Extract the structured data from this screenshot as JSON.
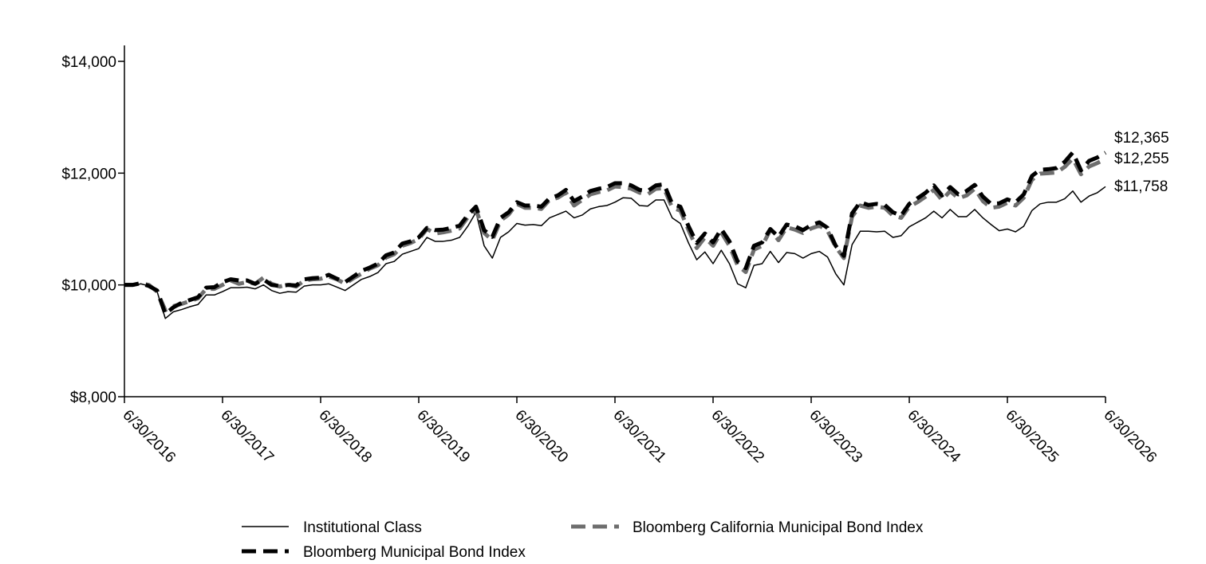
{
  "chart_data": {
    "type": "line",
    "title": "",
    "xlabel": "",
    "ylabel": "",
    "ylim": [
      8000,
      14000
    ],
    "y_ticks": [
      "$8,000",
      "$10,000",
      "$12,000",
      "$14,000"
    ],
    "y_tick_values": [
      8000,
      10000,
      12000,
      14000
    ],
    "x_tick_labels": [
      "6/30/2016",
      "6/30/2017",
      "6/30/2018",
      "6/30/2019",
      "6/30/2020",
      "6/30/2021",
      "6/30/2022",
      "6/30/2023",
      "6/30/2024",
      "6/30/2025",
      "6/30/2026"
    ],
    "grid": false,
    "legend_position": "bottom",
    "end_labels": [
      "$12,365",
      "$12,255",
      "$11,758"
    ],
    "series": [
      {
        "name": "Institutional Class",
        "style": "solid-thin",
        "color": "#000000",
        "values": [
          10000,
          9980,
          10020,
          9980,
          9880,
          9400,
          9520,
          9560,
          9610,
          9650,
          9820,
          9820,
          9880,
          9950,
          9950,
          9960,
          9930,
          10000,
          9900,
          9850,
          9880,
          9870,
          9980,
          10000,
          10000,
          10020,
          9960,
          9900,
          10000,
          10100,
          10150,
          10220,
          10380,
          10420,
          10550,
          10600,
          10650,
          10850,
          10780,
          10780,
          10800,
          10850,
          11050,
          11300,
          10700,
          10480,
          10850,
          10950,
          11100,
          11070,
          11080,
          11060,
          11200,
          11260,
          11320,
          11200,
          11250,
          11360,
          11400,
          11420,
          11480,
          11560,
          11550,
          11420,
          11410,
          11520,
          11520,
          11200,
          11100,
          10750,
          10450,
          10590,
          10380,
          10620,
          10380,
          10020,
          9950,
          10350,
          10380,
          10600,
          10400,
          10580,
          10560,
          10480,
          10560,
          10600,
          10500,
          10200,
          10000,
          10720,
          10960,
          10960,
          10950,
          10960,
          10850,
          10880,
          11040,
          11120,
          11200,
          11320,
          11200,
          11350,
          11220,
          11220,
          11350,
          11200,
          11080,
          10970,
          11000,
          10950,
          11050,
          11330,
          11450,
          11480,
          11480,
          11540,
          11680,
          11480,
          11590,
          11650,
          11758
        ]
      },
      {
        "name": "Bloomberg Municipal Bond Index",
        "style": "dashed-black",
        "color": "#000000",
        "values": [
          10000,
          10000,
          10030,
          9980,
          9900,
          9480,
          9600,
          9680,
          9730,
          9780,
          9950,
          9960,
          10050,
          10100,
          10080,
          10080,
          10020,
          10100,
          10000,
          9980,
          10000,
          9990,
          10100,
          10120,
          10130,
          10180,
          10110,
          10050,
          10150,
          10250,
          10310,
          10380,
          10530,
          10580,
          10740,
          10780,
          10850,
          11020,
          10980,
          10990,
          11020,
          11060,
          11250,
          11400,
          10980,
          10860,
          11200,
          11300,
          11480,
          11420,
          11420,
          11400,
          11550,
          11600,
          11700,
          11500,
          11580,
          11680,
          11720,
          11750,
          11820,
          11820,
          11780,
          11700,
          11680,
          11780,
          11800,
          11450,
          11400,
          11050,
          10750,
          10920,
          10760,
          11000,
          10780,
          10420,
          10300,
          10700,
          10760,
          11000,
          10860,
          11080,
          11050,
          10980,
          11070,
          11120,
          11020,
          10700,
          10520,
          11280,
          11480,
          11430,
          11450,
          11430,
          11300,
          11240,
          11450,
          11550,
          11650,
          11780,
          11600,
          11750,
          11620,
          11680,
          11790,
          11580,
          11450,
          11460,
          11530,
          11480,
          11620,
          11950,
          12060,
          12070,
          12090,
          12200,
          12370,
          12050,
          12220,
          12280,
          12365
        ]
      },
      {
        "name": "Bloomberg California Municipal Bond Index",
        "style": "dashed-gray",
        "color": "#6e6e6e",
        "values": [
          10000,
          10000,
          10030,
          10000,
          9880,
          9550,
          9620,
          9660,
          9710,
          9760,
          9930,
          9930,
          10000,
          10080,
          10020,
          10050,
          10020,
          10130,
          10020,
          9970,
          10010,
          9970,
          10080,
          10100,
          10110,
          10150,
          10100,
          10020,
          10120,
          10200,
          10290,
          10350,
          10490,
          10550,
          10700,
          10750,
          10820,
          11000,
          10920,
          10940,
          10970,
          11010,
          11210,
          11350,
          10930,
          10800,
          11150,
          11260,
          11450,
          11380,
          11380,
          11360,
          11520,
          11560,
          11650,
          11420,
          11520,
          11620,
          11660,
          11690,
          11760,
          11750,
          11720,
          11650,
          11620,
          11720,
          11730,
          11380,
          11330,
          10980,
          10660,
          10850,
          10700,
          10940,
          10700,
          10350,
          10230,
          10630,
          10700,
          10980,
          10800,
          11030,
          10990,
          10930,
          11010,
          11060,
          10970,
          10680,
          10480,
          11220,
          11420,
          11380,
          11400,
          11380,
          11240,
          11200,
          11400,
          11480,
          11580,
          11700,
          11520,
          11680,
          11550,
          11600,
          11720,
          11500,
          11380,
          11400,
          11470,
          11420,
          11560,
          11880,
          11990,
          12000,
          12010,
          12110,
          12260,
          11980,
          12120,
          12180,
          12255
        ]
      }
    ]
  }
}
